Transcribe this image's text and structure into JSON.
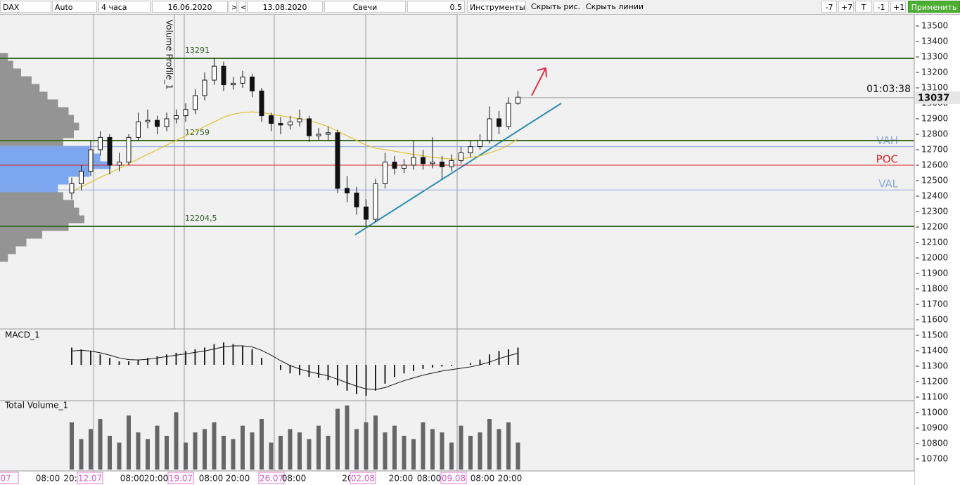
{
  "toolbar": {
    "symbol": "DAX",
    "scale": "Auto",
    "timeframe": "4 часа",
    "date_from": "16.06.2020",
    "nav": [
      ">",
      "<"
    ],
    "date_to": "13.08.2020",
    "chart_type": "Свечи",
    "step": "0.5",
    "tools": "Инструменты",
    "hide_drawings": "Скрыть рис.",
    "hide_lines": "Скрыть линии",
    "shift_buttons": [
      "-7",
      "+7",
      "T",
      "-1",
      "+1"
    ],
    "apply": "Применить"
  },
  "chart_data": {
    "type": "candlestick",
    "ylim": [
      10700,
      13500
    ],
    "yticks": [
      13500,
      13400,
      13300,
      13200,
      13100,
      13000,
      12900,
      12800,
      12700,
      12600,
      12500,
      12400,
      12300,
      12200,
      12100,
      12000,
      11900,
      11800,
      11700,
      11600,
      11500,
      11400,
      11300,
      11200,
      11100,
      11000,
      10900,
      10800,
      10700
    ],
    "candles": {
      "open": [
        12420,
        12480,
        12560,
        12700,
        12780,
        12600,
        12620,
        12780,
        12880,
        12890,
        12850,
        12900,
        12920,
        12960,
        13050,
        13150,
        13240,
        13120,
        13130,
        13170,
        13080,
        12920,
        12870,
        12860,
        12880,
        12900,
        12790,
        12800,
        12810,
        12450,
        12420,
        12330,
        12250,
        12480,
        12620,
        12580,
        12600,
        12650,
        12610,
        12620,
        12590,
        12630,
        12680,
        12720,
        12760,
        12900,
        12850,
        13000
      ],
      "high": [
        12520,
        12600,
        12760,
        12820,
        12800,
        12680,
        12800,
        12940,
        12960,
        12920,
        12940,
        12960,
        13000,
        13090,
        13200,
        13291,
        13270,
        13170,
        13210,
        13190,
        13100,
        12940,
        12910,
        12920,
        12960,
        12920,
        12840,
        12850,
        12830,
        12530,
        12460,
        12380,
        12510,
        12680,
        12660,
        12640,
        12760,
        12700,
        12780,
        12660,
        12670,
        12720,
        12760,
        12800,
        12980,
        12950,
        13040,
        13080
      ],
      "low": [
        12380,
        12440,
        12530,
        12660,
        12540,
        12560,
        12600,
        12760,
        12840,
        12800,
        12820,
        12870,
        12880,
        12930,
        13020,
        13120,
        13080,
        13090,
        13100,
        13040,
        12880,
        12820,
        12800,
        12830,
        12850,
        12750,
        12760,
        12760,
        12420,
        12360,
        12280,
        12204.5,
        12230,
        12450,
        12540,
        12550,
        12570,
        12570,
        12580,
        12510,
        12560,
        12610,
        12650,
        12700,
        12740,
        12800,
        12830,
        12990
      ],
      "close": [
        12480,
        12560,
        12700,
        12780,
        12600,
        12620,
        12780,
        12880,
        12890,
        12850,
        12900,
        12920,
        12960,
        13050,
        13150,
        13240,
        13120,
        13130,
        13170,
        13080,
        12920,
        12870,
        12860,
        12880,
        12900,
        12790,
        12800,
        12810,
        12450,
        12420,
        12330,
        12250,
        12480,
        12620,
        12580,
        12600,
        12650,
        12610,
        12620,
        12590,
        12630,
        12680,
        12720,
        12760,
        12900,
        12850,
        13000,
        13040
      ]
    },
    "ma": [
      12430,
      12460,
      12490,
      12520,
      12550,
      12580,
      12610,
      12640,
      12670,
      12700,
      12730,
      12760,
      12790,
      12820,
      12850,
      12880,
      12910,
      12930,
      12940,
      12945,
      12940,
      12930,
      12920,
      12910,
      12900,
      12890,
      12870,
      12850,
      12820,
      12790,
      12760,
      12730,
      12710,
      12700,
      12690,
      12680,
      12670,
      12660,
      12650,
      12645,
      12640,
      12640,
      12650,
      12660,
      12680,
      12700,
      12730,
      12770
    ],
    "levels": [
      {
        "value": 13291,
        "label": "13291"
      },
      {
        "value": 12759,
        "label": "12759"
      },
      {
        "value": 12204.5,
        "label": "12204,5"
      }
    ],
    "profile_label": "Volume Profile_1",
    "value_area": {
      "vah": 12720,
      "vah_label": "VAH",
      "poc": 12600,
      "poc_label": "POC",
      "val": 12440,
      "val_label": "VAL"
    },
    "profile": {
      "prices": [
        13300,
        13250,
        13200,
        13150,
        13100,
        13050,
        13000,
        12950,
        12900,
        12850,
        12800,
        12750,
        12700,
        12650,
        12600,
        12550,
        12500,
        12450,
        12400,
        12350,
        12300,
        12250,
        12200,
        12150,
        12100,
        12050,
        12000
      ],
      "values": [
        15,
        25,
        40,
        60,
        75,
        90,
        110,
        130,
        140,
        150,
        140,
        120,
        170,
        190,
        210,
        170,
        130,
        110,
        120,
        140,
        150,
        160,
        130,
        80,
        50,
        30,
        15
      ]
    },
    "last_price": {
      "value": 13037,
      "label": "13037",
      "timer": "01:03:38"
    },
    "macd": {
      "title": "MACD_1",
      "ylim": [
        -100,
        100
      ],
      "hist": [
        50,
        45,
        40,
        30,
        20,
        10,
        10,
        15,
        20,
        25,
        30,
        35,
        40,
        45,
        50,
        60,
        65,
        60,
        55,
        45,
        20,
        0,
        -15,
        -25,
        -30,
        -35,
        -38,
        -45,
        -60,
        -75,
        -85,
        -90,
        -75,
        -55,
        -35,
        -25,
        -18,
        -12,
        -8,
        -5,
        -3,
        0,
        5,
        15,
        30,
        40,
        45,
        50
      ],
      "signal": [
        40,
        42,
        40,
        35,
        28,
        20,
        15,
        14,
        16,
        20,
        24,
        28,
        32,
        36,
        40,
        46,
        52,
        55,
        55,
        52,
        42,
        28,
        12,
        -2,
        -12,
        -20,
        -26,
        -32,
        -42,
        -52,
        -62,
        -70,
        -72,
        -66,
        -56,
        -46,
        -38,
        -30,
        -24,
        -18,
        -14,
        -10,
        -6,
        0,
        8,
        18,
        26,
        34
      ]
    },
    "volume": {
      "title": "Total Volume_1",
      "ylim": [
        0,
        100
      ],
      "values": [
        70,
        45,
        60,
        75,
        50,
        40,
        80,
        55,
        45,
        65,
        50,
        85,
        40,
        55,
        60,
        70,
        50,
        45,
        65,
        55,
        75,
        40,
        50,
        60,
        55,
        45,
        65,
        50,
        90,
        95,
        60,
        70,
        80,
        55,
        65,
        50,
        45,
        70,
        60,
        55,
        40,
        65,
        50,
        55,
        75,
        60,
        70,
        40
      ]
    },
    "time_labels": [
      {
        "text": "07",
        "date": true
      },
      {
        "text": "08:00",
        "date": false
      },
      {
        "text": "20:",
        "date": false
      },
      {
        "text": "12.07",
        "date": true
      },
      {
        "text": "08:00",
        "date": false
      },
      {
        "text": "20:00",
        "date": false
      },
      {
        "text": "19.07",
        "date": true
      },
      {
        "text": "08:00",
        "date": false
      },
      {
        "text": "20:00",
        "date": false
      },
      {
        "text": "26.07",
        "date": true
      },
      {
        "text": "08:00",
        "date": false
      },
      {
        "text": "20:",
        "date": false
      },
      {
        "text": "02.08",
        "date": true
      },
      {
        "text": "20:00",
        "date": false
      },
      {
        "text": "08:00",
        "date": false
      },
      {
        "text": "09.08",
        "date": true
      },
      {
        "text": "08:00",
        "date": false
      },
      {
        "text": "20:00",
        "date": false
      }
    ]
  }
}
